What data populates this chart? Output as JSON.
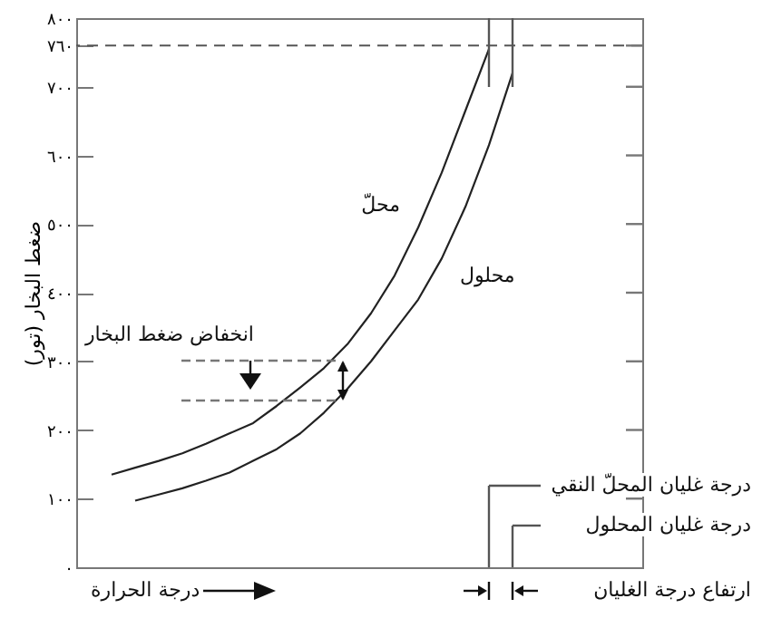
{
  "chart_data": {
    "type": "line",
    "xlabel": "درجة الحرارة",
    "ylabel": "ضغط البخار (تور)",
    "tick_labels": "y",
    "categories": [
      null,
      null,
      null,
      null,
      null,
      null,
      null,
      null,
      null,
      null,
      null,
      null,
      null,
      null,
      null,
      null,
      null,
      null,
      null,
      null,
      null,
      null,
      null,
      null
    ],
    "series": [
      {
        "name": "محلّ",
        "color": "#222222",
        "values": [
          null,
          135,
          145,
          155,
          166,
          180,
          195,
          210,
          235,
          262,
          290,
          325,
          370,
          425,
          495,
          575,
          665,
          755,
          null,
          null,
          null,
          null,
          null,
          null
        ]
      },
      {
        "name": "محلول",
        "color": "#222222",
        "values": [
          null,
          null,
          97,
          106,
          115,
          126,
          138,
          155,
          172,
          195,
          225,
          260,
          300,
          345,
          390,
          450,
          525,
          615,
          720,
          null,
          null,
          null,
          null,
          null
        ]
      }
    ],
    "ylim": [
      0,
      800
    ],
    "yticks": [
      {
        "value": 0,
        "label": "٠"
      },
      {
        "value": 100,
        "label": "١٠٠"
      },
      {
        "value": 200,
        "label": "٢٠٠"
      },
      {
        "value": 300,
        "label": "٣٠٠"
      },
      {
        "value": 400,
        "label": "٤٠٠"
      },
      {
        "value": 500,
        "label": "٥٠٠"
      },
      {
        "value": 600,
        "label": "٦٠٠"
      },
      {
        "value": 700,
        "label": "٧٠٠"
      },
      {
        "value": 760,
        "label": "٧٦٠"
      },
      {
        "value": 800,
        "label": "٨٠٠"
      }
    ],
    "ref_lines": [
      {
        "axis": "y",
        "value": 760,
        "color": "#555555",
        "line_style": "dashed"
      }
    ],
    "annotations": [
      "انخفاض ضغط البخار",
      "درجة غليان المحلّ النقي",
      "درجة غليان المحلول",
      "ارتفاع درجة الغليان"
    ]
  }
}
